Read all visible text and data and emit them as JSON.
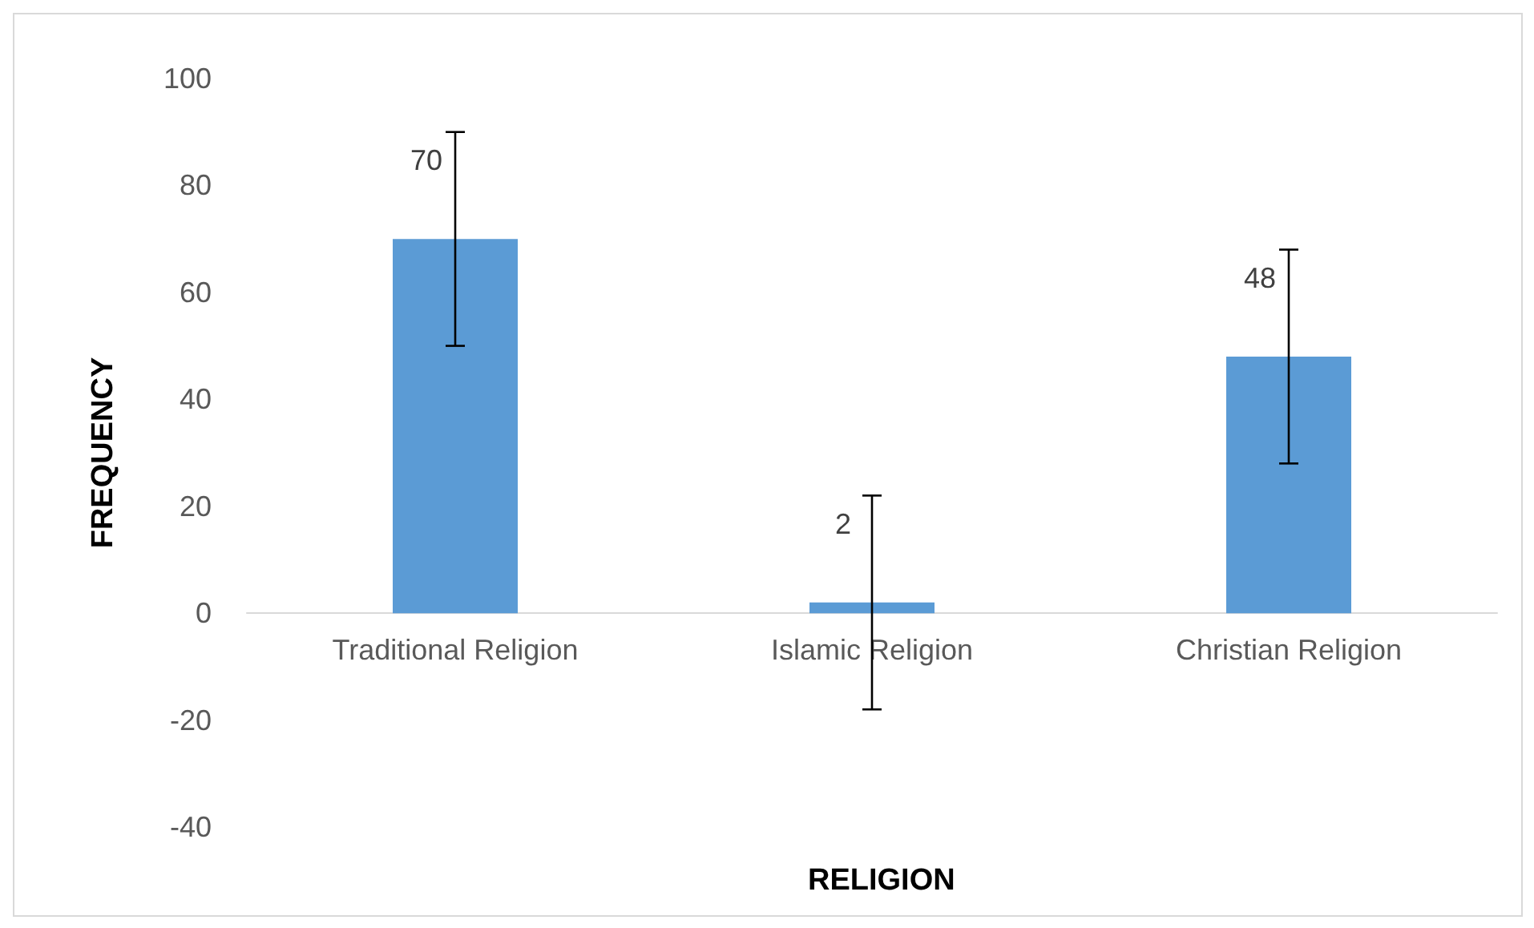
{
  "chart_data": {
    "type": "bar",
    "xlabel": "RELIGION",
    "ylabel": "FREQUENCY",
    "categories": [
      "Traditional Religion",
      "Islamic Religion",
      "Christian Religion"
    ],
    "values": [
      70,
      2,
      48
    ],
    "color": "#5b9bd5",
    "errors": [
      20,
      20,
      20
    ],
    "ylim": [
      -40,
      100
    ],
    "yticks": [
      -40,
      -20,
      0,
      20,
      40,
      60,
      80,
      100
    ],
    "grid": false,
    "data_labels": true
  }
}
